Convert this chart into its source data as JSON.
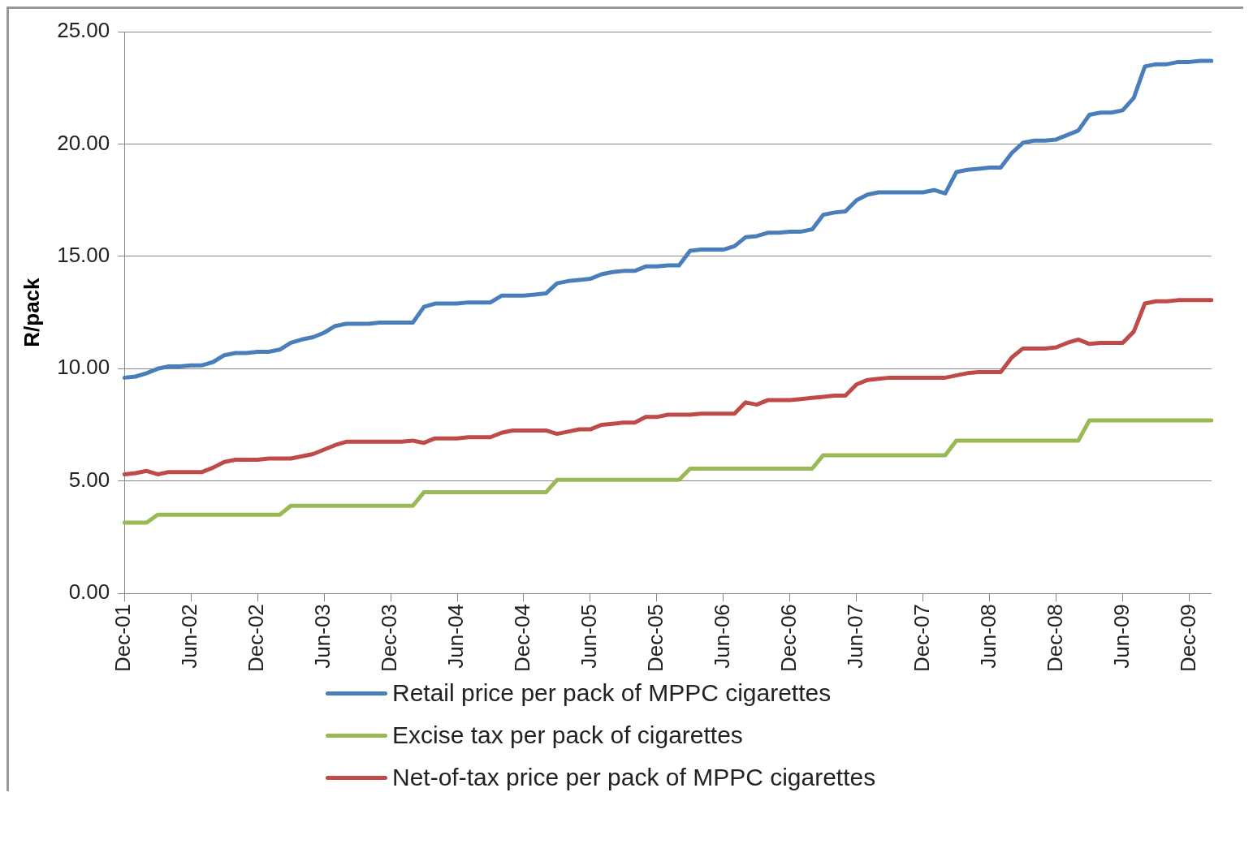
{
  "chart_data": {
    "type": "line",
    "ylabel": "R/pack",
    "categories": [
      "Dec-01",
      null,
      null,
      null,
      null,
      null,
      "Jun-02",
      null,
      null,
      null,
      null,
      null,
      "Dec-02",
      null,
      null,
      null,
      null,
      null,
      "Jun-03",
      null,
      null,
      null,
      null,
      null,
      "Dec-03",
      null,
      null,
      null,
      null,
      null,
      "Jun-04",
      null,
      null,
      null,
      null,
      null,
      "Dec-04",
      null,
      null,
      null,
      null,
      null,
      "Jun-05",
      null,
      null,
      null,
      null,
      null,
      "Dec-05",
      null,
      null,
      null,
      null,
      null,
      "Jun-06",
      null,
      null,
      null,
      null,
      null,
      "Dec-06",
      null,
      null,
      null,
      null,
      null,
      "Jun-07",
      null,
      null,
      null,
      null,
      null,
      "Dec-07",
      null,
      null,
      null,
      null,
      null,
      "Jun-08",
      null,
      null,
      null,
      null,
      null,
      "Dec-08",
      null,
      null,
      null,
      null,
      null,
      "Jun-09",
      null,
      null,
      null,
      null,
      null,
      "Dec-09",
      null,
      null
    ],
    "ylim": [
      0,
      25
    ],
    "yticks": [
      {
        "value": 0,
        "label": "0.00"
      },
      {
        "value": 5,
        "label": "5.00"
      },
      {
        "value": 10,
        "label": "10.00"
      },
      {
        "value": 15,
        "label": "15.00"
      },
      {
        "value": 20,
        "label": "20.00"
      },
      {
        "value": 25,
        "label": "25.00"
      }
    ],
    "grid": "y",
    "legend": "bottom",
    "marker": "none",
    "line_style": "solid",
    "series": [
      {
        "name": "Retail price per pack of MPPC cigarettes",
        "color": "#4a7ebb",
        "values": [
          9.6,
          9.65,
          9.8,
          10.0,
          10.1,
          10.1,
          10.15,
          10.15,
          10.3,
          10.6,
          10.7,
          10.7,
          10.75,
          10.75,
          10.85,
          11.15,
          11.3,
          11.4,
          11.6,
          11.9,
          12.0,
          12.0,
          12.0,
          12.05,
          12.05,
          12.05,
          12.05,
          12.75,
          12.9,
          12.9,
          12.9,
          12.95,
          12.95,
          12.95,
          13.25,
          13.25,
          13.25,
          13.3,
          13.35,
          13.8,
          13.9,
          13.95,
          14.0,
          14.2,
          14.3,
          14.35,
          14.35,
          14.55,
          14.55,
          14.6,
          14.6,
          15.25,
          15.3,
          15.3,
          15.3,
          15.45,
          15.85,
          15.9,
          16.05,
          16.05,
          16.1,
          16.1,
          16.2,
          16.85,
          16.95,
          17.0,
          17.5,
          17.75,
          17.85,
          17.85,
          17.85,
          17.85,
          17.85,
          17.95,
          17.8,
          18.75,
          18.85,
          18.9,
          18.95,
          18.95,
          19.6,
          20.05,
          20.15,
          20.15,
          20.2,
          20.4,
          20.6,
          21.3,
          21.4,
          21.4,
          21.5,
          22.05,
          23.45,
          23.55,
          23.55,
          23.65,
          23.65,
          23.7,
          23.7
        ]
      },
      {
        "name": "Excise tax per pack of cigarettes",
        "color": "#98b954",
        "values": [
          3.15,
          3.15,
          3.15,
          3.5,
          3.5,
          3.5,
          3.5,
          3.5,
          3.5,
          3.5,
          3.5,
          3.5,
          3.5,
          3.5,
          3.5,
          3.9,
          3.9,
          3.9,
          3.9,
          3.9,
          3.9,
          3.9,
          3.9,
          3.9,
          3.9,
          3.9,
          3.9,
          4.5,
          4.5,
          4.5,
          4.5,
          4.5,
          4.5,
          4.5,
          4.5,
          4.5,
          4.5,
          4.5,
          4.5,
          5.05,
          5.05,
          5.05,
          5.05,
          5.05,
          5.05,
          5.05,
          5.05,
          5.05,
          5.05,
          5.05,
          5.05,
          5.55,
          5.55,
          5.55,
          5.55,
          5.55,
          5.55,
          5.55,
          5.55,
          5.55,
          5.55,
          5.55,
          5.55,
          6.15,
          6.15,
          6.15,
          6.15,
          6.15,
          6.15,
          6.15,
          6.15,
          6.15,
          6.15,
          6.15,
          6.15,
          6.8,
          6.8,
          6.8,
          6.8,
          6.8,
          6.8,
          6.8,
          6.8,
          6.8,
          6.8,
          6.8,
          6.8,
          7.7,
          7.7,
          7.7,
          7.7,
          7.7,
          7.7,
          7.7,
          7.7,
          7.7,
          7.7,
          7.7,
          7.7
        ]
      },
      {
        "name": "Net-of-tax price per pack of MPPC cigarettes",
        "color": "#be4b48",
        "values": [
          5.3,
          5.35,
          5.45,
          5.3,
          5.4,
          5.4,
          5.4,
          5.4,
          5.6,
          5.85,
          5.95,
          5.95,
          5.95,
          6.0,
          6.0,
          6.0,
          6.1,
          6.2,
          6.4,
          6.6,
          6.75,
          6.75,
          6.75,
          6.75,
          6.75,
          6.75,
          6.8,
          6.7,
          6.9,
          6.9,
          6.9,
          6.95,
          6.95,
          6.95,
          7.15,
          7.25,
          7.25,
          7.25,
          7.25,
          7.1,
          7.2,
          7.3,
          7.3,
          7.5,
          7.55,
          7.6,
          7.6,
          7.85,
          7.85,
          7.95,
          7.95,
          7.95,
          8.0,
          8.0,
          8.0,
          8.0,
          8.5,
          8.4,
          8.6,
          8.6,
          8.6,
          8.65,
          8.7,
          8.75,
          8.8,
          8.8,
          9.3,
          9.5,
          9.55,
          9.6,
          9.6,
          9.6,
          9.6,
          9.6,
          9.6,
          9.7,
          9.8,
          9.85,
          9.85,
          9.85,
          10.5,
          10.9,
          10.9,
          10.9,
          10.95,
          11.15,
          11.3,
          11.1,
          11.15,
          11.15,
          11.15,
          11.65,
          12.9,
          13.0,
          13.0,
          13.05,
          13.05,
          13.05,
          13.05
        ]
      }
    ]
  }
}
